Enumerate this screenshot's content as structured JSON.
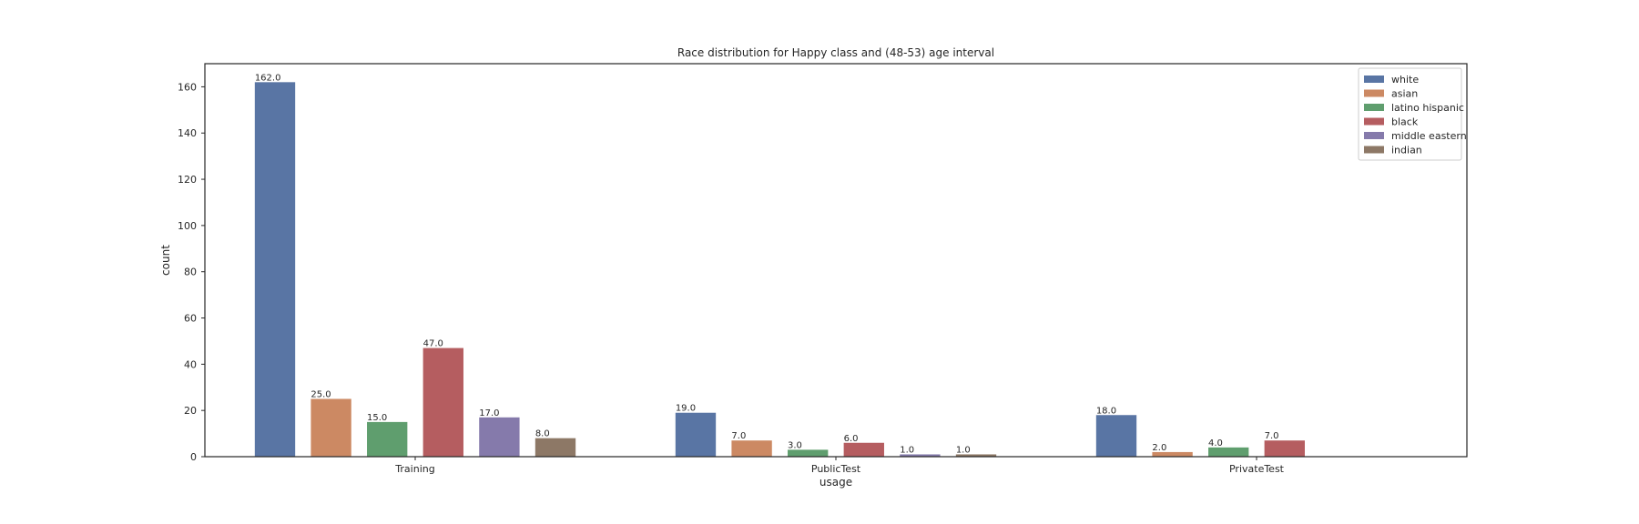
{
  "chart_data": {
    "type": "bar",
    "title": "Race distribution for Happy class and (48-53) age interval",
    "xlabel": "usage",
    "ylabel": "count",
    "categories": [
      "Training",
      "PublicTest",
      "PrivateTest"
    ],
    "ylim": [
      0,
      170
    ],
    "yticks": [
      0,
      20,
      40,
      60,
      80,
      100,
      120,
      140,
      160
    ],
    "ytick_labels": [
      "0",
      "20",
      "40",
      "60",
      "80",
      "100",
      "120",
      "140",
      "160"
    ],
    "grid": false,
    "legend_position": "top-right",
    "series": [
      {
        "name": "white",
        "color": "#5975a4",
        "values": [
          162,
          19,
          18
        ],
        "labels": [
          "162.0",
          "19.0",
          "18.0"
        ]
      },
      {
        "name": "asian",
        "color": "#cc8963",
        "values": [
          25,
          7,
          2
        ],
        "labels": [
          "25.0",
          "7.0",
          "2.0"
        ]
      },
      {
        "name": "latino hispanic",
        "color": "#5f9e6e",
        "values": [
          15,
          3,
          4
        ],
        "labels": [
          "15.0",
          "3.0",
          "4.0"
        ]
      },
      {
        "name": "black",
        "color": "#b55d60",
        "values": [
          47,
          6,
          7
        ],
        "labels": [
          "47.0",
          "6.0",
          "7.0"
        ]
      },
      {
        "name": "middle eastern",
        "color": "#857aab",
        "values": [
          17,
          1,
          null
        ],
        "labels": [
          "17.0",
          "1.0",
          null
        ]
      },
      {
        "name": "indian",
        "color": "#8d7866",
        "values": [
          8,
          1,
          null
        ],
        "labels": [
          "8.0",
          "1.0",
          null
        ]
      }
    ]
  }
}
